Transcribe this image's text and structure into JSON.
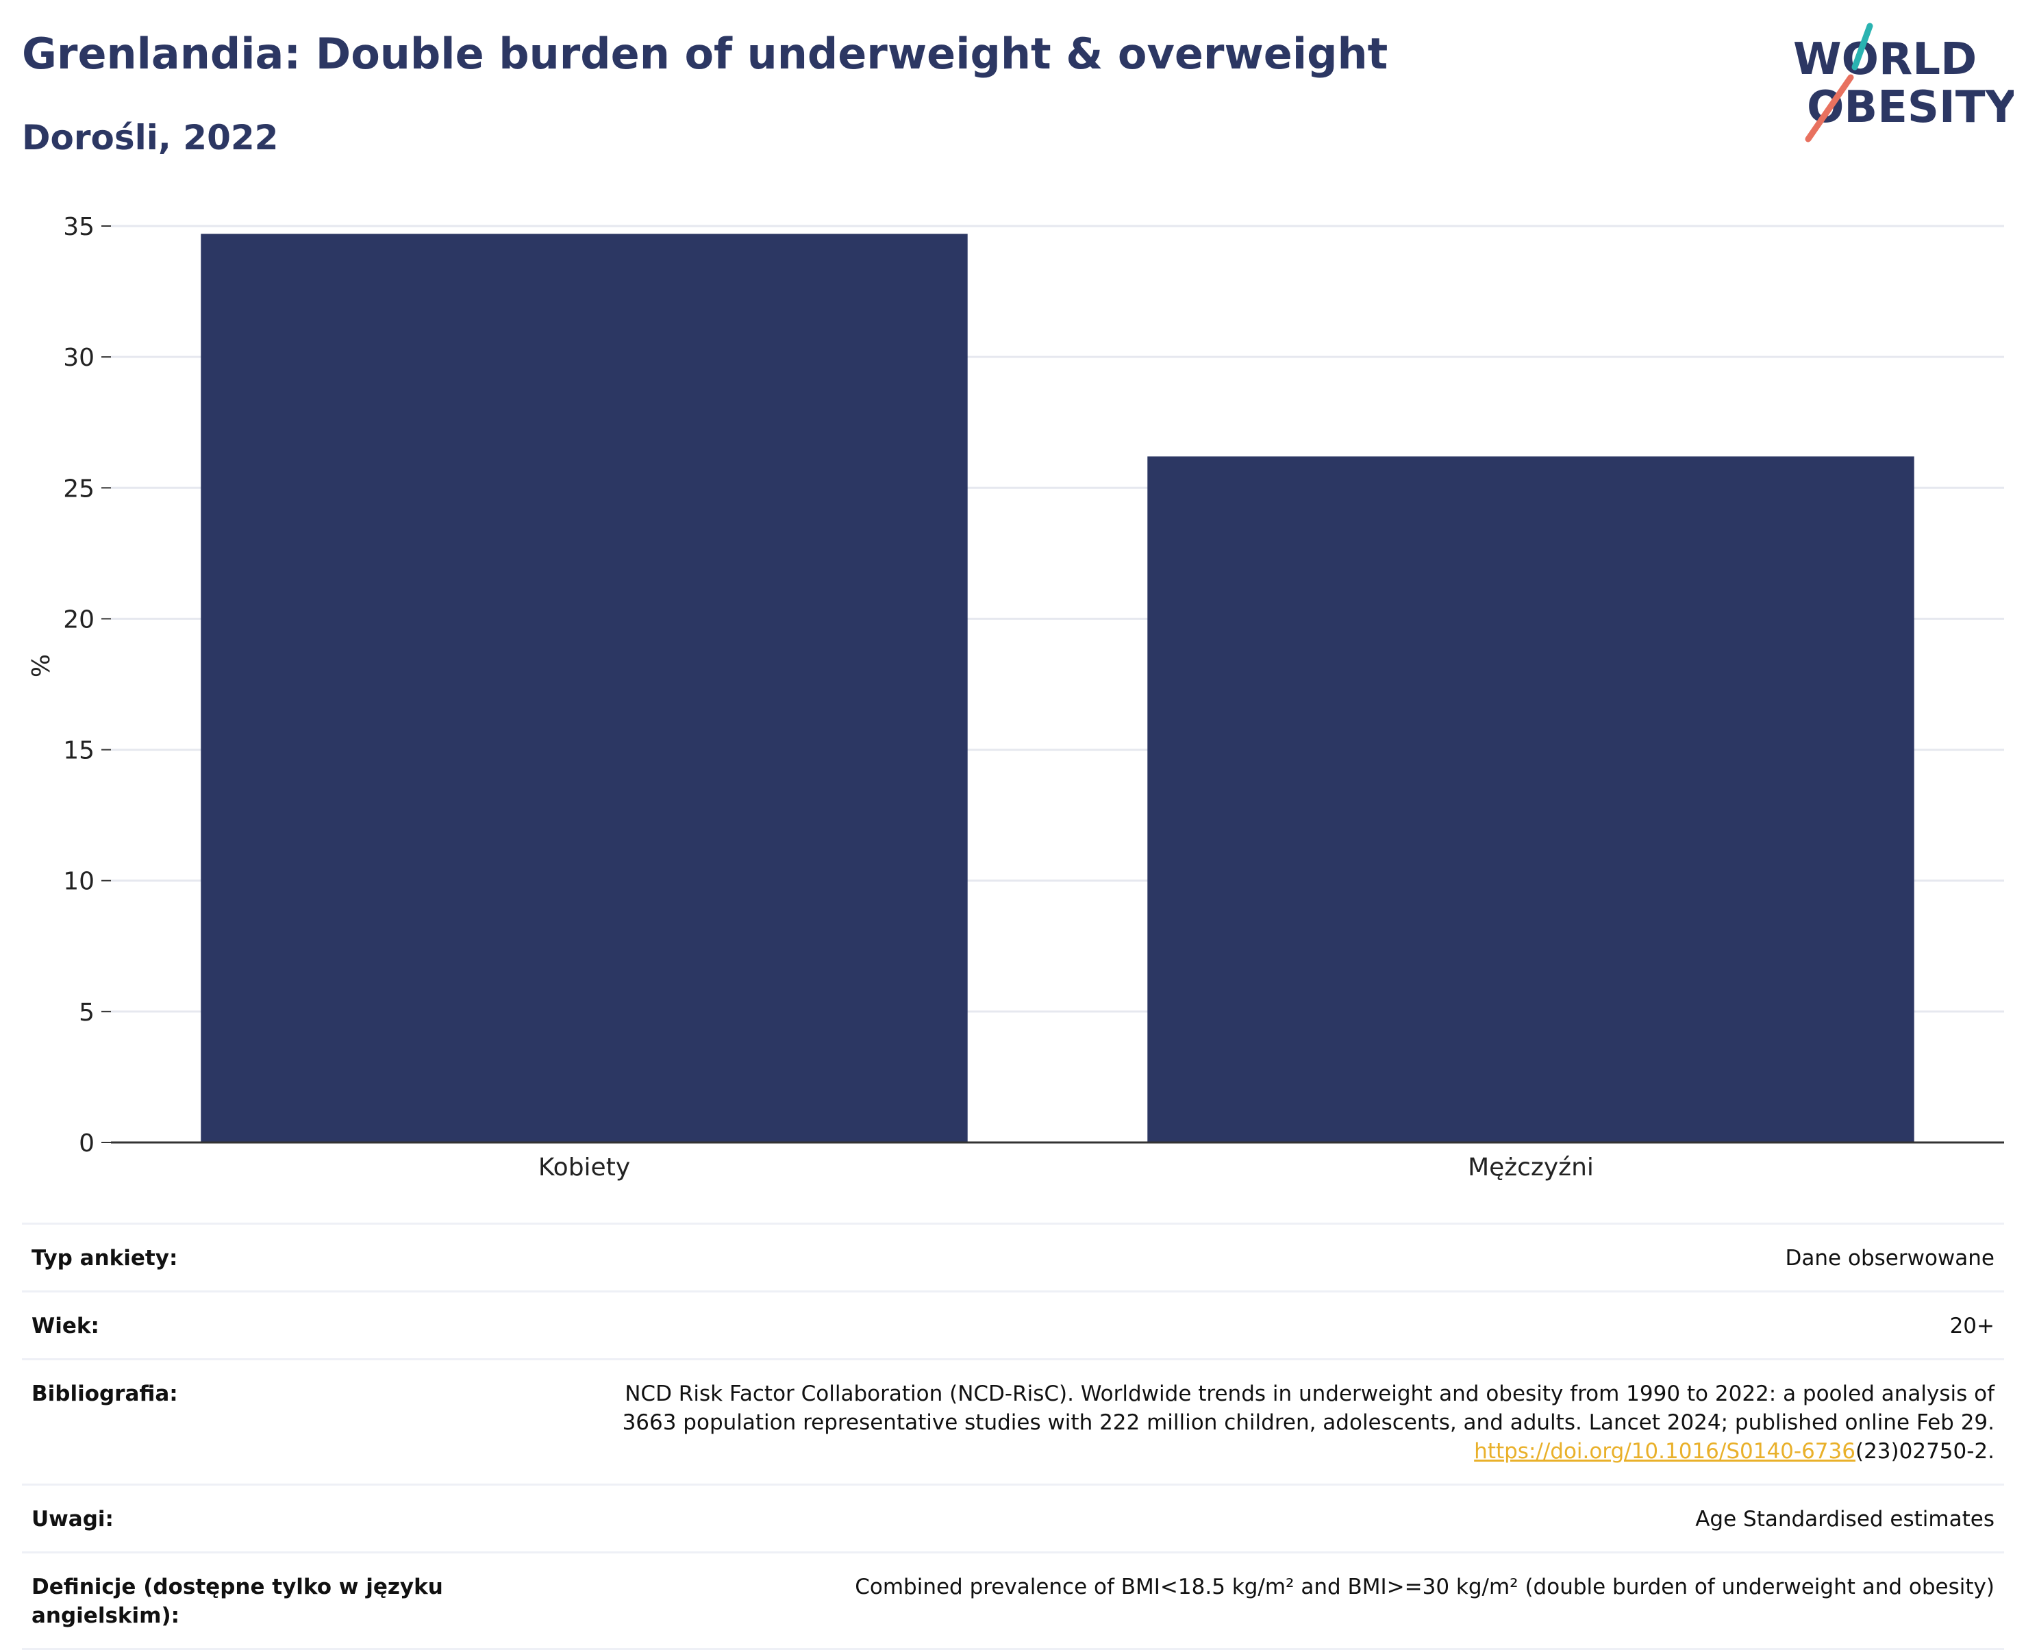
{
  "header": {
    "title": "Grenlandia: Double burden of underweight & overweight",
    "subtitle": "Dorośli, 2022"
  },
  "logo": {
    "line1": "WORLD",
    "line2": "OBESITY",
    "colors": {
      "text": "#2c3763",
      "teal": "#2ab3b1",
      "coral": "#e8715f"
    }
  },
  "chart_data": {
    "type": "bar",
    "categories": [
      "Kobiety",
      "Mężczyźni"
    ],
    "values": [
      34.7,
      26.2
    ],
    "xlabel": "",
    "ylabel": "%",
    "ylim": [
      0,
      35
    ],
    "yticks": [
      0,
      5,
      10,
      15,
      20,
      25,
      30,
      35
    ],
    "grid": true,
    "bar_color": "#2c3763"
  },
  "info": {
    "rows": [
      {
        "label": "Typ ankiety:",
        "value": "Dane obserwowane"
      },
      {
        "label": "Wiek:",
        "value": "20+"
      },
      {
        "label": "Bibliografia:",
        "line1": "NCD Risk Factor Collaboration (NCD-RisC). Worldwide trends in underweight and obesity from 1990 to 2022: a pooled analysis of",
        "line2": "3663 population representative studies with 222 million children, adolescents, and adults. Lancet 2024; published online Feb 29.",
        "link": "https://doi.org/10.1016/S0140-6736",
        "suffix": "(23)02750-2."
      },
      {
        "label": "Uwagi:",
        "value": "Age Standardised estimates"
      },
      {
        "label": "Definicje (dostępne tylko w języku angielskim):",
        "value": "Combined prevalence of BMI<18.5 kg/m² and BMI>=30 kg/m² (double burden of underweight and obesity)"
      }
    ]
  }
}
